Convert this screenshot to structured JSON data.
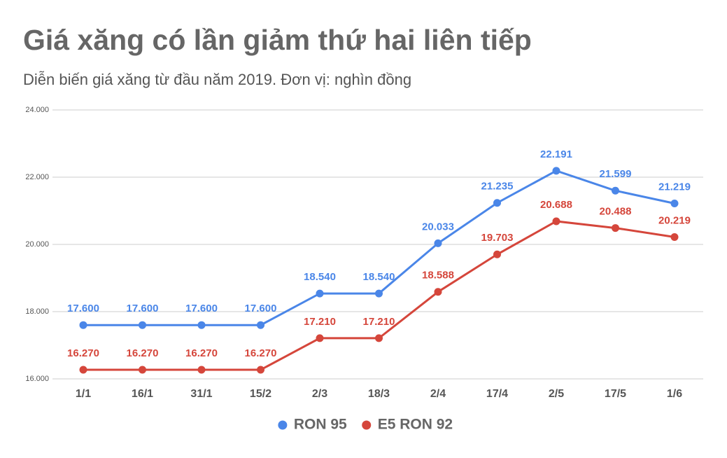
{
  "chart_data": {
    "type": "line",
    "title": "Giá xăng có lần giảm thứ hai liên tiếp",
    "subtitle": "Diễn biến giá xăng từ đầu năm 2019. Đơn vị: nghìn đồng",
    "categories": [
      "1/1",
      "16/1",
      "31/1",
      "15/2",
      "2/3",
      "18/3",
      "2/4",
      "17/4",
      "2/5",
      "17/5",
      "1/6"
    ],
    "series": [
      {
        "name": "RON 95",
        "color": "#4a86e8",
        "values": [
          17600,
          17600,
          17600,
          17600,
          18540,
          18540,
          20033,
          21235,
          22191,
          21599,
          21219
        ],
        "value_labels": [
          "17.600",
          "17.600",
          "17.600",
          "17.600",
          "18.540",
          "18.540",
          "20.033",
          "21.235",
          "22.191",
          "21.599",
          "21.219"
        ]
      },
      {
        "name": "E5 RON 92",
        "color": "#d5463b",
        "values": [
          16270,
          16270,
          16270,
          16270,
          17210,
          17210,
          18588,
          19703,
          20688,
          20488,
          20219
        ],
        "value_labels": [
          "16.270",
          "16.270",
          "16.270",
          "16.270",
          "17.210",
          "17.210",
          "18.588",
          "19.703",
          "20.688",
          "20.488",
          "20.219"
        ]
      }
    ],
    "ylim": [
      16000,
      24000
    ],
    "yticks": [
      {
        "value": 16000,
        "label": "16.000"
      },
      {
        "value": 18000,
        "label": "18.000"
      },
      {
        "value": 20000,
        "label": "20.000"
      },
      {
        "value": 22000,
        "label": "22.000"
      },
      {
        "value": 24000,
        "label": "24.000"
      }
    ],
    "grid": true,
    "legend": "bottom"
  }
}
